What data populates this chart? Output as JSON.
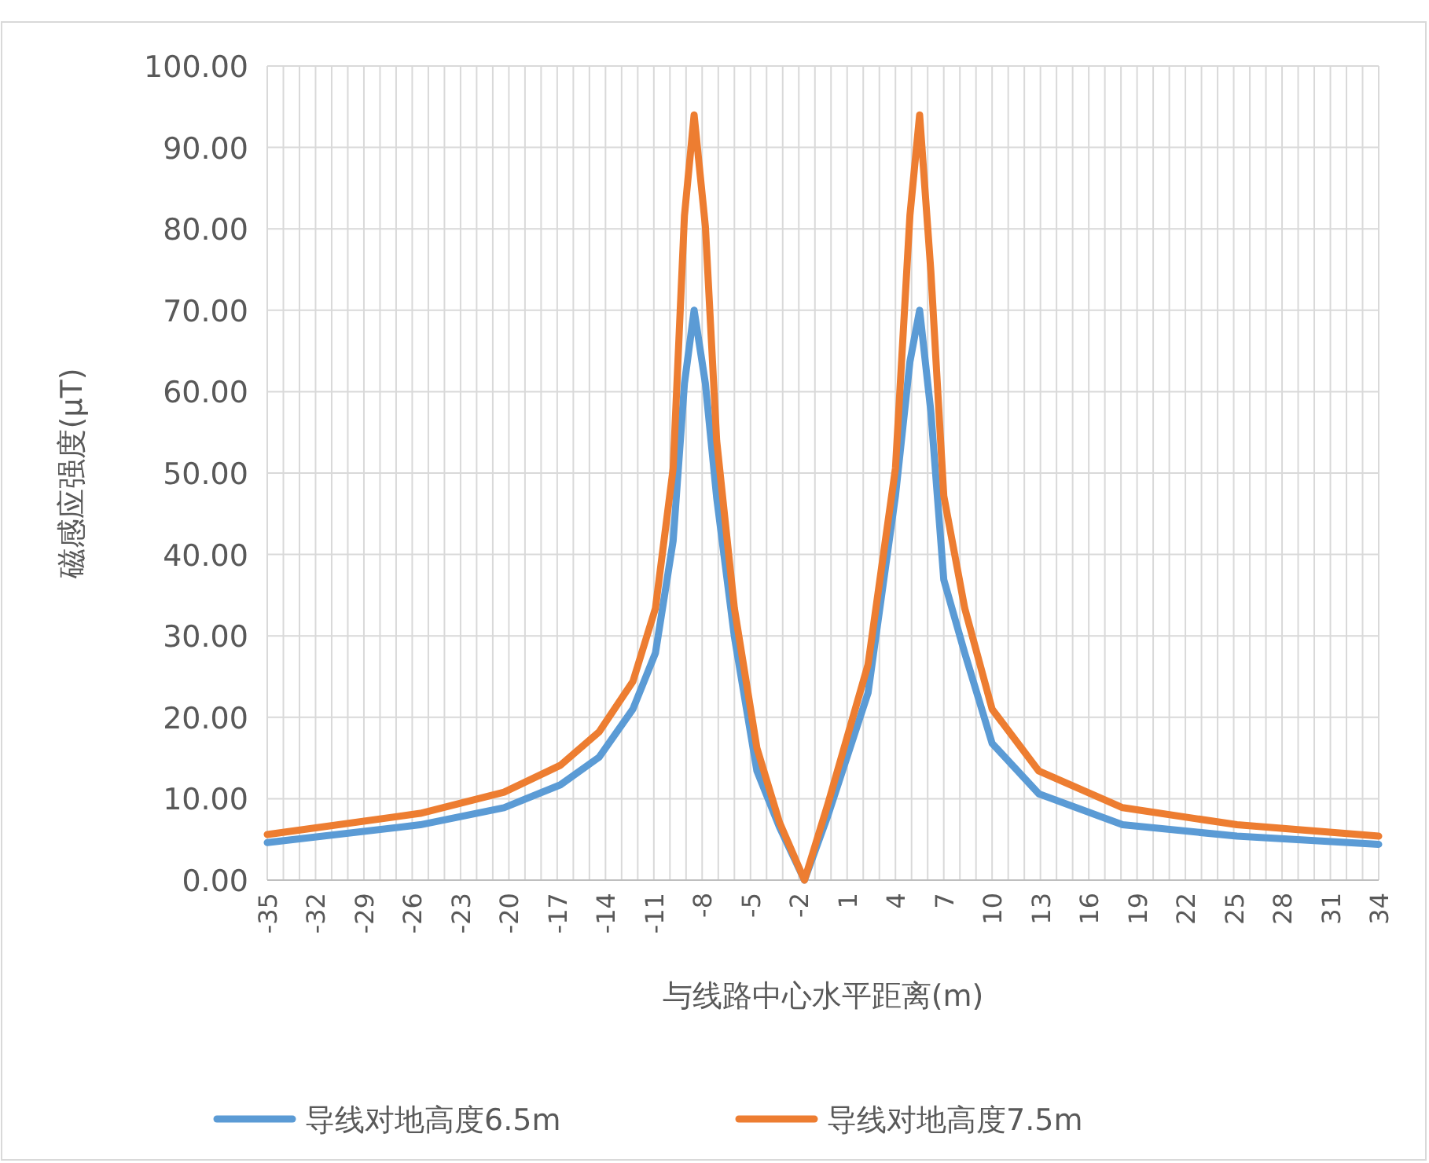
{
  "chart_data": {
    "type": "line",
    "xlabel": "与线路中心水平距离(m)",
    "ylabel": "磁感应强度(μT)",
    "xlim": [
      -35,
      34
    ],
    "ylim": [
      0,
      100
    ],
    "yticks": [
      {
        "value": 0,
        "label": "0.00"
      },
      {
        "value": 10,
        "label": "10.00"
      },
      {
        "value": 20,
        "label": "20.00"
      },
      {
        "value": 30,
        "label": "30.00"
      },
      {
        "value": 40,
        "label": "40.00"
      },
      {
        "value": 50,
        "label": "50.00"
      },
      {
        "value": 60,
        "label": "60.00"
      },
      {
        "value": 70,
        "label": "70.00"
      },
      {
        "value": 80,
        "label": "80.00"
      },
      {
        "value": 90,
        "label": "90.00"
      },
      {
        "value": 100,
        "label": "100.00"
      }
    ],
    "xticks": [
      -35,
      {
        "value": -34,
        "label": null
      },
      {
        "value": -33,
        "label": null
      },
      -32,
      {
        "value": -31,
        "label": null
      },
      {
        "value": -30,
        "label": null
      },
      -29,
      {
        "value": -28,
        "label": null
      },
      {
        "value": -27,
        "label": null
      },
      -26,
      {
        "value": -25,
        "label": null
      },
      {
        "value": -24,
        "label": null
      },
      -23,
      {
        "value": -22,
        "label": null
      },
      {
        "value": -21,
        "label": null
      },
      -20,
      {
        "value": -19,
        "label": null
      },
      {
        "value": -18,
        "label": null
      },
      -17,
      {
        "value": -16,
        "label": null
      },
      {
        "value": -15,
        "label": null
      },
      -14,
      {
        "value": -13,
        "label": null
      },
      {
        "value": -12,
        "label": null
      },
      -11,
      {
        "value": -10,
        "label": null
      },
      {
        "value": -9,
        "label": null
      },
      -8,
      {
        "value": -7,
        "label": null
      },
      {
        "value": -6,
        "label": null
      },
      -5,
      {
        "value": -4,
        "label": null
      },
      {
        "value": -3,
        "label": null
      },
      -2,
      {
        "value": -1,
        "label": null
      },
      {
        "value": 0,
        "label": null
      },
      1,
      {
        "value": 2,
        "label": null
      },
      {
        "value": 3,
        "label": null
      },
      4,
      {
        "value": 5,
        "label": null
      },
      {
        "value": 6,
        "label": null
      },
      7,
      {
        "value": 8,
        "label": null
      },
      {
        "value": 9,
        "label": null
      },
      10,
      {
        "value": 11,
        "label": null
      },
      {
        "value": 12,
        "label": null
      },
      13,
      {
        "value": 14,
        "label": null
      },
      {
        "value": 15,
        "label": null
      },
      16,
      {
        "value": 17,
        "label": null
      },
      {
        "value": 18,
        "label": null
      },
      19,
      {
        "value": 20,
        "label": null
      },
      {
        "value": 21,
        "label": null
      },
      22,
      {
        "value": 23,
        "label": null
      },
      {
        "value": 24,
        "label": null
      },
      25,
      {
        "value": 26,
        "label": null
      },
      {
        "value": 27,
        "label": null
      },
      28,
      {
        "value": 29,
        "label": null
      },
      {
        "value": 30,
        "label": null
      },
      31,
      {
        "value": 32,
        "label": null
      },
      {
        "value": 33,
        "label": null
      },
      34
    ],
    "grid": true,
    "legend": "bottom",
    "line_style": "solid",
    "series": [
      {
        "name": "导线对地高度6.5m",
        "color": "#5b9bd5",
        "x": [
          -35,
          -25.5,
          -20.3,
          -16.8,
          -14.4,
          -12.3,
          -10.9,
          -9.8,
          -9.1,
          -8.5,
          -7.8,
          -7.1,
          -6,
          -4.6,
          -3.2,
          -1.65,
          -0.2,
          2.3,
          4,
          4.9,
          5.5,
          6.2,
          7,
          8.3,
          10,
          12.9,
          18.1,
          25.2,
          34
        ],
        "values": [
          4.6,
          6.8,
          8.9,
          11.7,
          15.1,
          21,
          27.9,
          41.7,
          61,
          70,
          61,
          47,
          29.9,
          13.4,
          6.5,
          0,
          7.9,
          23,
          47.2,
          63.7,
          70,
          57.5,
          36.9,
          27.9,
          16.8,
          10.6,
          6.8,
          5.4,
          4.4
        ]
      },
      {
        "name": "导线对地高度7.5m",
        "color": "#ed7d31",
        "x": [
          -35,
          -25.5,
          -20.3,
          -16.8,
          -14.4,
          -12.3,
          -10.9,
          -9.8,
          -9.1,
          -8.5,
          -7.8,
          -7.1,
          -6,
          -4.6,
          -3.2,
          -1.65,
          -0.2,
          2.3,
          4,
          4.9,
          5.5,
          6.2,
          7,
          8.3,
          10,
          12.9,
          18.1,
          25.2,
          34
        ],
        "values": [
          5.6,
          8.2,
          10.8,
          14.1,
          18.2,
          24.4,
          33.4,
          50.6,
          81.6,
          94,
          80.3,
          54,
          33.4,
          16.2,
          7.1,
          0,
          9.3,
          26.5,
          50.6,
          81.7,
          94,
          74.7,
          47.2,
          33.4,
          21,
          13.4,
          8.9,
          6.8,
          5.4
        ]
      }
    ]
  }
}
